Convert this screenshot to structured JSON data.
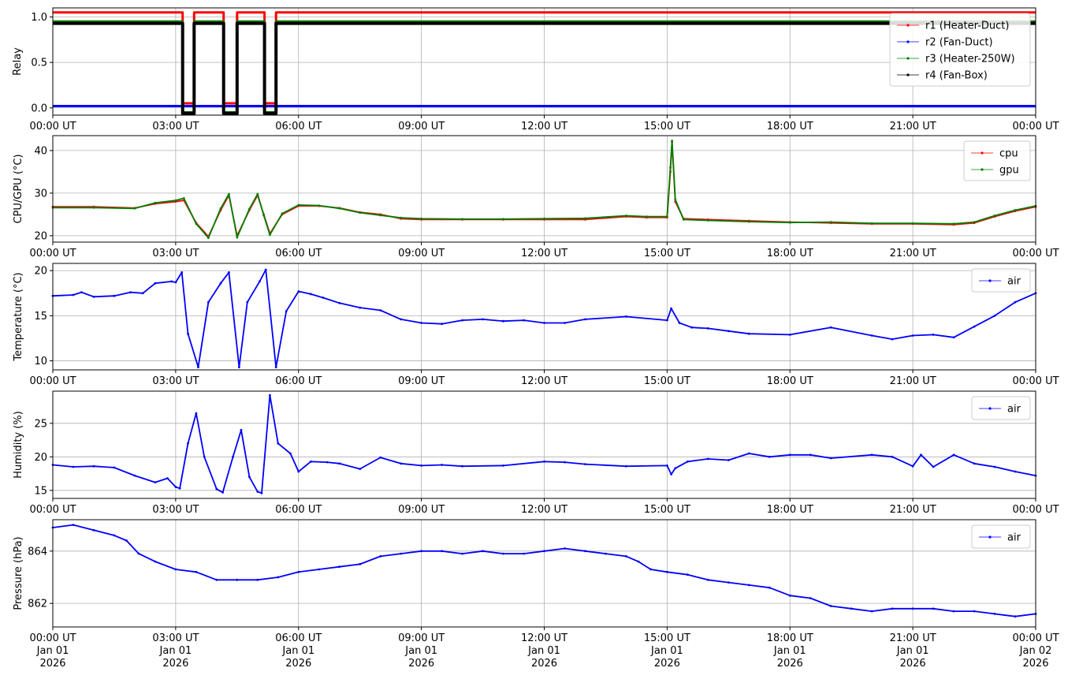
{
  "time_ticks": [
    "00:00 UT",
    "03:00 UT",
    "06:00 UT",
    "09:00 UT",
    "12:00 UT",
    "15:00 UT",
    "18:00 UT",
    "21:00 UT",
    "00:00 UT"
  ],
  "date_ticks": [
    "Jan 01",
    "Jan 01",
    "Jan 01",
    "Jan 01",
    "Jan 01",
    "Jan 01",
    "Jan 01",
    "Jan 01",
    "Jan 02"
  ],
  "year_ticks": [
    "2026",
    "2026",
    "2026",
    "2026",
    "2026",
    "2026",
    "2026",
    "2026",
    "2026"
  ],
  "colors": {
    "r1": "#ff0000",
    "r2": "#0000ff",
    "r3": "#008000",
    "r4": "#000000",
    "cpu": "#ff0000",
    "gpu": "#008000",
    "air": "#0000ff",
    "grid": "#b0b0b0"
  },
  "chart_data": [
    {
      "type": "line",
      "ylabel": "Relay",
      "ylim": [
        -0.08,
        1.1
      ],
      "yticks": [
        "0.0",
        "0.5",
        "1.0"
      ],
      "yvals": [
        0,
        0.5,
        1.0
      ],
      "grid": true,
      "legend_position": "right",
      "x_unit": "hours since 2026-01-01 00:00 UT",
      "series": [
        {
          "name": "r1 (Heater-Duct)",
          "color": "#ff0000",
          "x": [
            0,
            3.17,
            3.17,
            3.45,
            3.45,
            4.17,
            4.17,
            4.5,
            4.5,
            5.17,
            5.17,
            5.45,
            5.45,
            24
          ],
          "y": [
            1.05,
            1.05,
            0.05,
            0.05,
            1.05,
            1.05,
            0.05,
            0.05,
            1.05,
            1.05,
            0.05,
            0.05,
            1.05,
            1.05
          ]
        },
        {
          "name": "r2 (Fan-Duct)",
          "color": "#0000ff",
          "x": [
            0,
            24
          ],
          "y": [
            0.02,
            0.02
          ]
        },
        {
          "name": "r3 (Heater-250W)",
          "color": "#008000",
          "x": [
            0,
            3.17,
            3.17,
            3.45,
            3.45,
            4.17,
            4.17,
            4.5,
            4.5,
            5.17,
            5.17,
            5.45,
            5.45,
            24
          ],
          "y": [
            0.95,
            0.95,
            -0.05,
            -0.05,
            0.95,
            0.95,
            -0.05,
            -0.05,
            0.95,
            0.95,
            -0.05,
            -0.05,
            0.95,
            0.95
          ]
        },
        {
          "name": "r4 (Fan-Box)",
          "color": "#000000",
          "x": [
            0,
            3.17,
            3.17,
            3.45,
            3.45,
            4.17,
            4.17,
            4.5,
            4.5,
            5.17,
            5.17,
            5.45,
            5.45,
            24
          ],
          "y": [
            0.93,
            0.93,
            -0.06,
            -0.06,
            0.93,
            0.93,
            -0.06,
            -0.06,
            0.93,
            0.93,
            -0.06,
            -0.06,
            0.93,
            0.93
          ]
        }
      ]
    },
    {
      "type": "line",
      "ylabel": "CPU/GPU (°C)",
      "ylim": [
        18.5,
        43.5
      ],
      "yticks": [
        "20",
        "30",
        "40"
      ],
      "yvals": [
        20,
        30,
        40
      ],
      "grid": true,
      "legend_position": "top-right",
      "x_unit": "hours since 2026-01-01 00:00 UT",
      "series": [
        {
          "name": "cpu",
          "color": "#ff0000",
          "x": [
            0,
            1,
            2,
            2.5,
            3,
            3.2,
            3.5,
            3.8,
            4.1,
            4.3,
            4.5,
            4.8,
            5.0,
            5.15,
            5.3,
            5.6,
            6,
            6.5,
            7,
            7.5,
            8,
            8.5,
            9,
            10,
            11,
            12,
            13,
            14,
            14.5,
            15.0,
            15.08,
            15.12,
            15.2,
            15.4,
            16,
            17,
            18,
            19,
            20,
            21,
            22,
            22.5,
            23,
            23.5,
            24
          ],
          "y": [
            26.8,
            26.8,
            26.5,
            27.5,
            28,
            28.3,
            23,
            19.8,
            26,
            29.5,
            20,
            26,
            29.5,
            25,
            20.5,
            25,
            27,
            27,
            26.5,
            25.5,
            25,
            24,
            23.8,
            23.8,
            23.8,
            23.8,
            23.8,
            24.5,
            24.3,
            24.3,
            35,
            42,
            28,
            24,
            23.8,
            23.5,
            23.2,
            23.0,
            22.8,
            22.8,
            22.6,
            23,
            24.5,
            25.8,
            26.8
          ]
        },
        {
          "name": "gpu",
          "color": "#008000",
          "x": [
            0,
            1,
            2,
            2.5,
            3,
            3.2,
            3.5,
            3.8,
            4.1,
            4.3,
            4.5,
            4.8,
            5.0,
            5.15,
            5.3,
            5.6,
            6,
            6.5,
            7,
            7.5,
            8,
            8.5,
            9,
            10,
            11,
            12,
            13,
            14,
            14.5,
            15.0,
            15.08,
            15.12,
            15.2,
            15.4,
            16,
            17,
            18,
            19,
            20,
            21,
            22,
            22.5,
            23,
            23.5,
            24
          ],
          "y": [
            26.6,
            26.6,
            26.4,
            27.7,
            28.3,
            28.8,
            22.8,
            19.5,
            26.4,
            29.8,
            19.6,
            26.3,
            29.8,
            24.8,
            20.2,
            25.2,
            27.2,
            27.1,
            26.4,
            25.4,
            24.8,
            24.2,
            24.0,
            23.9,
            23.9,
            24.0,
            24.1,
            24.7,
            24.5,
            24.5,
            36,
            42.3,
            28.5,
            23.8,
            23.6,
            23.3,
            23.1,
            23.2,
            22.9,
            22.9,
            22.8,
            23.2,
            24.7,
            26.0,
            27.0
          ]
        }
      ]
    },
    {
      "type": "line",
      "ylabel": "Temperature (°C)",
      "ylim": [
        9,
        20.8
      ],
      "yticks": [
        "10",
        "15",
        "20"
      ],
      "yvals": [
        10,
        15,
        20
      ],
      "grid": true,
      "legend_position": "top-right",
      "x_unit": "hours since 2026-01-01 00:00 UT",
      "series": [
        {
          "name": "air",
          "color": "#0000ff",
          "x": [
            0,
            0.5,
            0.7,
            1,
            1.5,
            1.9,
            2.2,
            2.5,
            2.9,
            3.0,
            3.15,
            3.3,
            3.55,
            3.8,
            4.1,
            4.3,
            4.55,
            4.75,
            5.05,
            5.2,
            5.45,
            5.7,
            6.0,
            6.3,
            6.6,
            7,
            7.5,
            8,
            8.5,
            9,
            9.5,
            10,
            10.5,
            11,
            11.5,
            12,
            12.5,
            13,
            14,
            15.0,
            15.1,
            15.3,
            15.6,
            16,
            16.5,
            17,
            18,
            19,
            20,
            20.5,
            21,
            21.5,
            22,
            22.5,
            23,
            23.5,
            24
          ],
          "y": [
            17.2,
            17.3,
            17.6,
            17.1,
            17.2,
            17.6,
            17.5,
            18.6,
            18.8,
            18.7,
            19.8,
            13,
            9.3,
            16.5,
            18.6,
            19.8,
            9.3,
            16.5,
            18.8,
            20.1,
            9.3,
            15.5,
            17.7,
            17.4,
            17.0,
            16.4,
            15.9,
            15.6,
            14.6,
            14.2,
            14.1,
            14.5,
            14.6,
            14.4,
            14.5,
            14.2,
            14.2,
            14.6,
            14.9,
            14.5,
            15.8,
            14.2,
            13.7,
            13.6,
            13.3,
            13.0,
            12.9,
            13.7,
            12.8,
            12.4,
            12.8,
            12.9,
            12.6,
            13.8,
            15.0,
            16.5,
            17.5
          ]
        }
      ]
    },
    {
      "type": "line",
      "ylabel": "Humidity (%)",
      "ylim": [
        13.8,
        29.8
      ],
      "yticks": [
        "15",
        "20",
        "25"
      ],
      "yvals": [
        15,
        20,
        25
      ],
      "grid": true,
      "legend_position": "top-right",
      "x_unit": "hours since 2026-01-01 00:00 UT",
      "series": [
        {
          "name": "air",
          "color": "#0000ff",
          "x": [
            0,
            0.5,
            1,
            1.5,
            2,
            2.5,
            2.8,
            3.0,
            3.1,
            3.3,
            3.5,
            3.7,
            4.0,
            4.15,
            4.4,
            4.6,
            4.8,
            5.0,
            5.1,
            5.3,
            5.5,
            5.8,
            6.0,
            6.3,
            6.7,
            7,
            7.5,
            8,
            8.5,
            9,
            9.5,
            10,
            11,
            12,
            12.5,
            13,
            14,
            15.0,
            15.1,
            15.2,
            15.5,
            16,
            16.5,
            17,
            17.5,
            18,
            18.5,
            19,
            20,
            20.5,
            21,
            21.2,
            21.5,
            22,
            22.5,
            23,
            23.5,
            24
          ],
          "y": [
            18.8,
            18.5,
            18.6,
            18.4,
            17.2,
            16.2,
            16.8,
            15.5,
            15.3,
            22,
            26.5,
            20,
            15.2,
            14.7,
            20,
            24,
            17,
            14.8,
            14.6,
            29.2,
            22,
            20.5,
            17.8,
            19.3,
            19.2,
            19.0,
            18.2,
            19.9,
            19.0,
            18.7,
            18.8,
            18.6,
            18.7,
            19.3,
            19.2,
            18.9,
            18.6,
            18.7,
            17.4,
            18.3,
            19.3,
            19.7,
            19.5,
            20.5,
            20.0,
            20.3,
            20.3,
            19.8,
            20.3,
            20.0,
            18.6,
            20.3,
            18.5,
            20.3,
            19.0,
            18.5,
            17.8,
            17.2
          ]
        }
      ]
    },
    {
      "type": "line",
      "ylabel": "Pressure (hPa)",
      "ylim": [
        861.1,
        865.2
      ],
      "yticks": [
        "862",
        "864"
      ],
      "yvals": [
        862,
        864
      ],
      "grid": true,
      "legend_position": "top-right",
      "x_unit": "hours since 2026-01-01 00:00 UT",
      "series": [
        {
          "name": "air",
          "color": "#0000ff",
          "x": [
            0,
            0.5,
            1,
            1.5,
            1.8,
            2.1,
            2.5,
            3,
            3.5,
            4,
            4.5,
            5,
            5.5,
            6,
            6.5,
            7,
            7.5,
            8,
            8.5,
            9,
            9.5,
            10,
            10.5,
            11,
            11.5,
            12,
            12.5,
            13,
            13.5,
            14,
            14.3,
            14.6,
            15,
            15.5,
            16,
            16.5,
            17,
            17.5,
            18,
            18.5,
            19,
            19.5,
            20,
            20.5,
            21,
            21.5,
            22,
            22.5,
            23,
            23.5,
            24
          ],
          "y": [
            864.9,
            865.0,
            864.8,
            864.6,
            864.4,
            863.9,
            863.6,
            863.3,
            863.2,
            862.9,
            862.9,
            862.9,
            863.0,
            863.2,
            863.3,
            863.4,
            863.5,
            863.8,
            863.9,
            864.0,
            864.0,
            863.9,
            864.0,
            863.9,
            863.9,
            864.0,
            864.1,
            864.0,
            863.9,
            863.8,
            863.6,
            863.3,
            863.2,
            863.1,
            862.9,
            862.8,
            862.7,
            862.6,
            862.3,
            862.2,
            861.9,
            861.8,
            861.7,
            861.8,
            861.8,
            861.8,
            861.7,
            861.7,
            861.6,
            861.5,
            861.6
          ]
        }
      ]
    }
  ]
}
